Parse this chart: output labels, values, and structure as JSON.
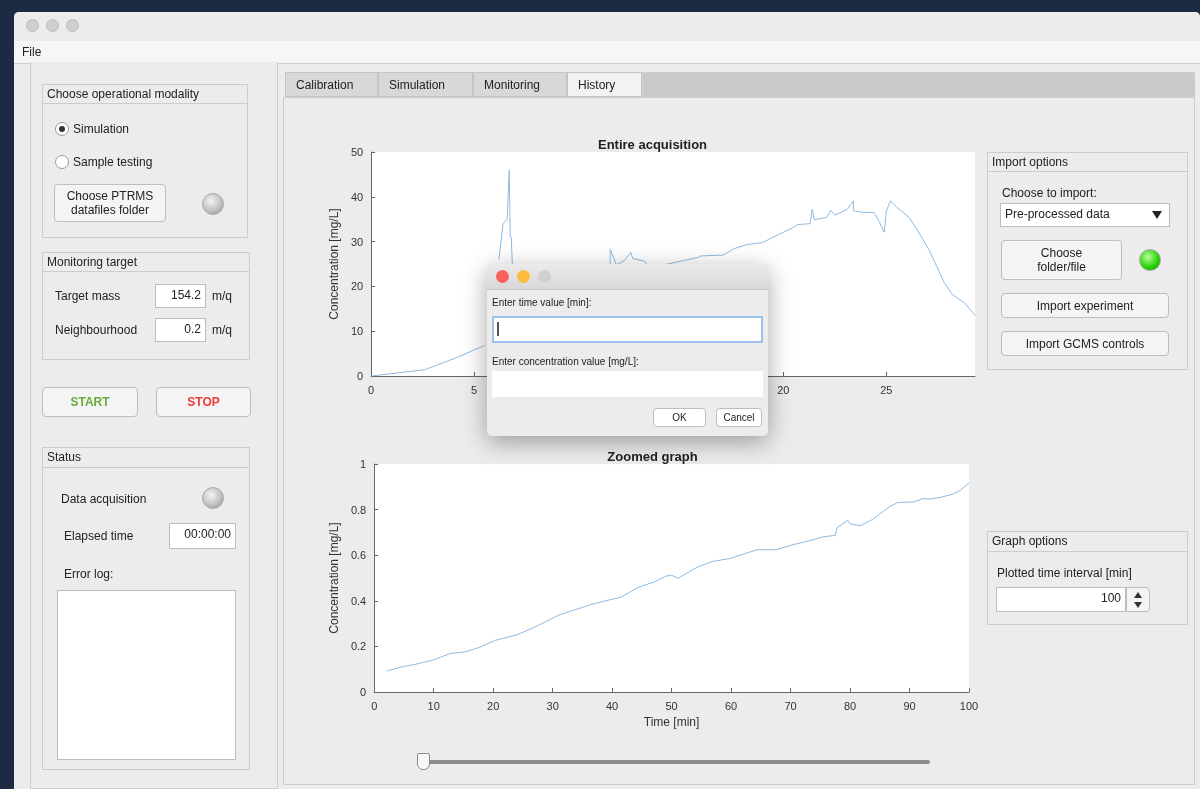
{
  "chart_data": [
    {
      "type": "other",
      "annotations": [
        "File",
        "Choose operational modality",
        "Simulation",
        "Sample testing",
        "Choose PTRMS datafiles folder",
        "Monitoring target",
        "Target mass",
        "154.2",
        "m/q",
        "Neighbourhood",
        "0.2",
        "m/q",
        "START",
        "STOP",
        "Status",
        "Data acquisition",
        "Elapsed time",
        "00:00:00",
        "Error log:",
        "Calibration",
        "Simulation",
        "Monitoring",
        "History",
        "Import options",
        "Choose to import:",
        "Pre-processed data",
        "Choose folder/file",
        "Import experiment",
        "Import GCMS controls",
        "Graph options",
        "Plotted time interval [min]",
        "100",
        "Enter time value [min]:",
        "Enter concentration value [mg/L]:",
        "OK",
        "Cancel"
      ]
    },
    {
      "type": "line",
      "title": "Entire acquisition",
      "ylabel": "Concentration [mg/L]",
      "color": "#8dbbe3",
      "x": [
        0,
        2.6,
        4.2,
        5.5,
        5.8,
        6.2,
        6.4,
        6.6,
        6.7,
        6.75,
        6.8,
        6.85,
        9,
        11.6,
        11.6,
        11.9,
        12.3,
        12.6,
        12.7,
        13.25,
        13.4,
        13.8,
        14.2,
        15,
        15.9,
        16,
        17.1,
        17.6,
        18.2,
        19,
        19.6,
        20.5,
        20.7,
        21.3,
        21.4,
        21.5,
        22.1,
        22.3,
        22.5,
        23.1,
        23.4,
        23.4,
        23.9,
        24.4,
        24.6,
        24.9,
        25,
        25.2,
        25.5,
        26.1,
        26.5,
        27.1,
        27.8,
        28.2,
        28.8,
        29.3
      ],
      "values": [
        0,
        1.4,
        4.2,
        6.8,
        null,
        26,
        34,
        35,
        46,
        31,
        31,
        25,
        null,
        25,
        28.3,
        24.8,
        25.8,
        27.6,
        26.2,
        25.7,
        24.8,
        null,
        24.8,
        25.6,
        26.5,
        26.8,
        27,
        28.4,
        29.3,
        29.8,
        31.2,
        33.2,
        33.8,
        34,
        37.2,
        34.9,
        35.4,
        37,
        35.9,
        37.2,
        39.1,
        36.9,
        36.5,
        36.5,
        34.9,
        32.1,
        36.9,
        39.1,
        37.7,
        35.4,
        32.6,
        27.9,
        20.9,
        18.2,
        16.3,
        13.5
      ],
      "xlim": [
        0,
        29.3
      ],
      "xticks": [
        0,
        5,
        20,
        25
      ],
      "ylim": [
        0,
        50
      ],
      "yticks": [
        0,
        10,
        20,
        30,
        40,
        50
      ]
    },
    {
      "type": "line",
      "title": "Zoomed graph",
      "xlabel": "Time [min]",
      "ylabel": "Concentration [mg/L]",
      "color": "#8dbbe3",
      "x": [
        2.1,
        4.9,
        7,
        9.9,
        12.7,
        15.5,
        17.6,
        20.4,
        23.9,
        26.1,
        28.2,
        31,
        33.8,
        36.6,
        39.4,
        41.5,
        44.4,
        47.2,
        49,
        50,
        51.1,
        53.5,
        54.9,
        57,
        59.9,
        62.7,
        64.4,
        67.6,
        70.4,
        72.5,
        75.4,
        77.5,
        77.8,
        79.6,
        80,
        81.7,
        83.8,
        86.6,
        88,
        90.8,
        92.3,
        93.3,
        95.1,
        97.2,
        98.6,
        100
      ],
      "values": [
        0.092,
        0.112,
        0.122,
        0.14,
        0.168,
        0.177,
        0.195,
        0.227,
        0.25,
        0.274,
        0.3,
        0.337,
        0.361,
        0.385,
        0.403,
        0.416,
        0.459,
        0.484,
        0.508,
        0.512,
        0.499,
        0.536,
        0.554,
        0.573,
        0.586,
        0.61,
        0.624,
        0.624,
        0.646,
        0.659,
        0.68,
        0.687,
        0.72,
        0.753,
        0.738,
        0.729,
        0.757,
        0.812,
        0.831,
        0.834,
        0.849,
        0.846,
        0.853,
        0.867,
        0.886,
        0.917
      ],
      "xlim": [
        0,
        100
      ],
      "xticks": [
        0,
        10,
        20,
        30,
        40,
        50,
        60,
        70,
        80,
        90,
        100
      ],
      "ylim": [
        0,
        1
      ],
      "yticks": [
        0,
        0.2,
        0.4,
        0.6,
        0.8,
        1
      ]
    }
  ]
}
